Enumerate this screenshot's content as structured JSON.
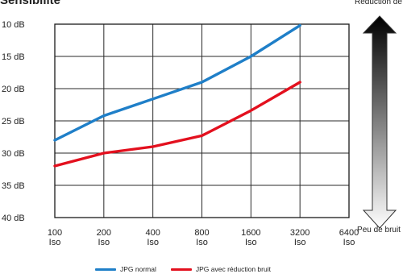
{
  "heading": "Sensibilité",
  "scale_indicator": {
    "top_label": "Réduction de bruit",
    "bottom_label": "Peu de bruit"
  },
  "chart_data": {
    "type": "line",
    "title": "Sensibilité",
    "xlabel": "",
    "ylabel": "",
    "categories": [
      "100 Iso",
      "200 Iso",
      "400 Iso",
      "800 Iso",
      "1600 Iso",
      "3200 Iso",
      "6400 Iso"
    ],
    "category_lines": [
      [
        "100",
        "Iso"
      ],
      [
        "200",
        "Iso"
      ],
      [
        "400",
        "Iso"
      ],
      [
        "800",
        "Iso"
      ],
      [
        "1600",
        "Iso"
      ],
      [
        "3200",
        "Iso"
      ],
      [
        "6400",
        "Iso"
      ]
    ],
    "y_ticks": [
      "10 dB",
      "15 dB",
      "20 dB",
      "25 dB",
      "30 dB",
      "35 dB",
      "40 dB"
    ],
    "ylim": [
      10,
      40
    ],
    "y_inverted": true,
    "grid": true,
    "legend_position": "bottom",
    "series": [
      {
        "name": "JPG normal",
        "color": "#1f7fc8",
        "values": [
          28,
          24.2,
          21.6,
          19,
          15,
          10.2,
          null
        ]
      },
      {
        "name": "JPG avec réduction bruit",
        "color": "#e3101e",
        "values": [
          32,
          30,
          29,
          27.3,
          23.4,
          19,
          null
        ]
      }
    ]
  }
}
